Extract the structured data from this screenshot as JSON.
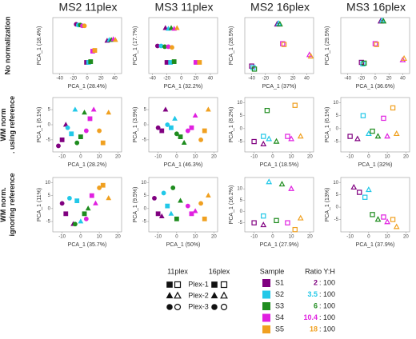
{
  "column_titles": [
    "MS2 11plex",
    "MS3 11plex",
    "MS2 16plex",
    "MS3 16plex"
  ],
  "row_labels": [
    [
      "No normalization"
    ],
    [
      "WM norm",
      ". using reference"
    ],
    [
      "WM norm.",
      "ignoring reference"
    ]
  ],
  "legend": {
    "plex_headers": [
      "11plex",
      "16plex"
    ],
    "plexes": [
      {
        "label": "Plex-1",
        "marker": "square"
      },
      {
        "label": "Plex-2",
        "marker": "triangle"
      },
      {
        "label": "Plex-3",
        "marker": "circle"
      }
    ],
    "sample_header": "Sample",
    "ratio_header": "Ratio Y:H",
    "ratio_suffix": ": 100",
    "samples": [
      {
        "name": "S1",
        "color": "#800080",
        "ratio": 2
      },
      {
        "name": "S2",
        "color": "#22c8e8",
        "ratio": 3.5
      },
      {
        "name": "S3",
        "color": "#1e8c1e",
        "ratio": 6
      },
      {
        "name": "S4",
        "color": "#e020e0",
        "ratio": 10.4
      },
      {
        "name": "S5",
        "color": "#f0a020",
        "ratio": 18
      }
    ]
  },
  "chart_data": [
    {
      "type": "scatter",
      "x_label": "PCA_1 (28.4%)",
      "y_label": "PCA_1 (18.4%)",
      "xlim": [
        -50,
        50
      ],
      "ylim": [
        -35,
        40
      ],
      "xticks": [
        -40,
        -20,
        0,
        20,
        40
      ],
      "filled": true,
      "markers": [
        "square",
        "triangle",
        "circle"
      ],
      "series": [
        {
          "color": "#800080",
          "x": [
            -1,
            29,
            -16
          ],
          "y": [
            -20,
            9,
            31
          ]
        },
        {
          "color": "#22c8e8",
          "x": [
            2,
            32,
            -13
          ],
          "y": [
            -20,
            10,
            30
          ]
        },
        {
          "color": "#1e8c1e",
          "x": [
            5,
            35,
            -10
          ],
          "y": [
            -19,
            10,
            30
          ]
        },
        {
          "color": "#e020e0",
          "x": [
            8,
            38,
            -7
          ],
          "y": [
            -5,
            11,
            29
          ]
        },
        {
          "color": "#f0a020",
          "x": [
            11,
            41,
            -4
          ],
          "y": [
            -4,
            10,
            29
          ]
        }
      ]
    },
    {
      "type": "scatter",
      "x_label": "PCA_1 (32.2%)",
      "y_label": "PCA_1 (17.7%)",
      "xlim": [
        -45,
        50
      ],
      "ylim": [
        -35,
        40
      ],
      "xticks": [
        -40,
        -20,
        0,
        20,
        40
      ],
      "filled": true,
      "markers": [
        "square",
        "triangle",
        "circle"
      ],
      "series": [
        {
          "color": "#800080",
          "x": [
            -20,
            -22,
            -33
          ],
          "y": [
            -20,
            26,
            2
          ]
        },
        {
          "color": "#22c8e8",
          "x": [
            -15,
            -18,
            -28
          ],
          "y": [
            -20,
            25,
            2
          ]
        },
        {
          "color": "#1e8c1e",
          "x": [
            -10,
            -14,
            -23
          ],
          "y": [
            -19,
            26,
            1
          ]
        },
        {
          "color": "#e020e0",
          "x": [
            20,
            -10,
            -18
          ],
          "y": [
            -20,
            25,
            1
          ]
        },
        {
          "color": "#f0a020",
          "x": [
            25,
            -6,
            -13
          ],
          "y": [
            -20,
            26,
            0
          ]
        }
      ]
    },
    {
      "type": "scatter",
      "x_label": "PCA_1 (37%)",
      "y_label": "PCA_1 (28.5%)",
      "xlim": [
        -50,
        50
      ],
      "ylim": [
        -30,
        45
      ],
      "xticks": [
        -40,
        -20,
        0,
        20,
        40
      ],
      "filled": false,
      "markers": [
        "square",
        "triangle"
      ],
      "series": [
        {
          "color": "#800080",
          "x": [
            -40,
            -3
          ],
          "y": [
            -20,
            36
          ]
        },
        {
          "color": "#22c8e8",
          "x": [
            -38,
            -1
          ],
          "y": [
            -22,
            37
          ]
        },
        {
          "color": "#1e8c1e",
          "x": [
            -36,
            1
          ],
          "y": [
            -24,
            36
          ]
        },
        {
          "color": "#e020e0",
          "x": [
            5,
            44
          ],
          "y": [
            10,
            -5
          ]
        },
        {
          "color": "#f0a020",
          "x": [
            7,
            46
          ],
          "y": [
            9,
            -7
          ]
        }
      ]
    },
    {
      "type": "scatter",
      "x_label": "PCA_1 (36.6%)",
      "y_label": "PCA_1 (29.5%)",
      "xlim": [
        -50,
        50
      ],
      "ylim": [
        -30,
        45
      ],
      "xticks": [
        -40,
        -20,
        0,
        20,
        40
      ],
      "filled": false,
      "markers": [
        "square",
        "triangle"
      ],
      "series": [
        {
          "color": "#800080",
          "x": [
            -20,
            8
          ],
          "y": [
            -15,
            40
          ]
        },
        {
          "color": "#22c8e8",
          "x": [
            -18,
            10
          ],
          "y": [
            -17,
            41
          ]
        },
        {
          "color": "#1e8c1e",
          "x": [
            -16,
            12
          ],
          "y": [
            -16,
            40
          ]
        },
        {
          "color": "#e020e0",
          "x": [
            0,
            40
          ],
          "y": [
            10,
            -12
          ]
        },
        {
          "color": "#f0a020",
          "x": [
            2,
            42
          ],
          "y": [
            9,
            -10
          ]
        }
      ]
    },
    {
      "type": "scatter",
      "x_label": "PCA_1 (28.2%)",
      "y_label": "PCA_1 (6.1%)",
      "xlim": [
        -15,
        22
      ],
      "ylim": [
        -9,
        9
      ],
      "xticks": [
        -10,
        0,
        10,
        20
      ],
      "yticks": [
        -5,
        0,
        5
      ],
      "filled": true,
      "markers": [
        "square",
        "triangle",
        "circle"
      ],
      "series": [
        {
          "color": "#800080",
          "x": [
            -10,
            -8,
            -12
          ],
          "y": [
            -5,
            0,
            -7
          ]
        },
        {
          "color": "#22c8e8",
          "x": [
            -5,
            -3,
            -7
          ],
          "y": [
            -3,
            5,
            -1
          ]
        },
        {
          "color": "#1e8c1e",
          "x": [
            0,
            2,
            -2
          ],
          "y": [
            -4,
            4,
            -6
          ]
        },
        {
          "color": "#e020e0",
          "x": [
            5,
            7,
            3
          ],
          "y": [
            2,
            5,
            -2
          ]
        },
        {
          "color": "#f0a020",
          "x": [
            12,
            15,
            10
          ],
          "y": [
            -6,
            4,
            -2
          ]
        }
      ]
    },
    {
      "type": "scatter",
      "x_label": "PCA_1 (46.3%)",
      "y_label": "PCA_1 (3.9%)",
      "xlim": [
        -15,
        22
      ],
      "ylim": [
        -9,
        9
      ],
      "xticks": [
        -10,
        0,
        10,
        20
      ],
      "yticks": [
        -5,
        0,
        5
      ],
      "filled": true,
      "markers": [
        "square",
        "triangle",
        "circle"
      ],
      "series": [
        {
          "color": "#800080",
          "x": [
            -8,
            -6,
            -10
          ],
          "y": [
            -2,
            5,
            -1
          ]
        },
        {
          "color": "#22c8e8",
          "x": [
            -3,
            -1,
            -5
          ],
          "y": [
            -1,
            2,
            0
          ]
        },
        {
          "color": "#1e8c1e",
          "x": [
            2,
            4,
            0
          ],
          "y": [
            -4,
            -6,
            -3
          ]
        },
        {
          "color": "#e020e0",
          "x": [
            8,
            10,
            6
          ],
          "y": [
            -1,
            3,
            -2
          ]
        },
        {
          "color": "#f0a020",
          "x": [
            15,
            17,
            13
          ],
          "y": [
            -2,
            5,
            -5
          ]
        }
      ]
    },
    {
      "type": "scatter",
      "x_label": "PCA_1 (18.5%)",
      "y_label": "PCA_1 (8.2%)",
      "xlim": [
        -15,
        22
      ],
      "ylim": [
        -9,
        12
      ],
      "xticks": [
        -10,
        0,
        10,
        20
      ],
      "yticks": [
        -5,
        0,
        5,
        10
      ],
      "filled": false,
      "markers": [
        "square",
        "triangle"
      ],
      "series": [
        {
          "color": "#800080",
          "x": [
            -10,
            -5
          ],
          "y": [
            -5,
            -6
          ]
        },
        {
          "color": "#22c8e8",
          "x": [
            -5,
            -2
          ],
          "y": [
            -3,
            -4
          ]
        },
        {
          "color": "#1e8c1e",
          "x": [
            -3,
            2
          ],
          "y": [
            7,
            -5
          ]
        },
        {
          "color": "#e020e0",
          "x": [
            8,
            10
          ],
          "y": [
            -3,
            -4
          ]
        },
        {
          "color": "#f0a020",
          "x": [
            12,
            15
          ],
          "y": [
            9,
            -3
          ]
        }
      ]
    },
    {
      "type": "scatter",
      "x_label": "PCA_1 (32%)",
      "y_label": "PCA_1 (6.1%)",
      "xlim": [
        -15,
        22
      ],
      "ylim": [
        -9,
        12
      ],
      "xticks": [
        -10,
        0,
        10,
        20
      ],
      "yticks": [
        -5,
        0,
        5,
        10
      ],
      "filled": false,
      "markers": [
        "square",
        "triangle"
      ],
      "series": [
        {
          "color": "#800080",
          "x": [
            -10,
            -6
          ],
          "y": [
            -3,
            -4
          ]
        },
        {
          "color": "#22c8e8",
          "x": [
            -3,
            0
          ],
          "y": [
            5,
            -2
          ]
        },
        {
          "color": "#1e8c1e",
          "x": [
            2,
            5
          ],
          "y": [
            -1,
            -3
          ]
        },
        {
          "color": "#e020e0",
          "x": [
            8,
            10
          ],
          "y": [
            4,
            -3
          ]
        },
        {
          "color": "#f0a020",
          "x": [
            13,
            15
          ],
          "y": [
            8,
            -2
          ]
        }
      ]
    },
    {
      "type": "scatter",
      "x_label": "PCA_1 (35.7%)",
      "y_label": "PCA_1 (11%)",
      "xlim": [
        -15,
        22
      ],
      "ylim": [
        -9,
        12
      ],
      "xticks": [
        -10,
        0,
        10,
        20
      ],
      "yticks": [
        -5,
        0,
        5,
        10
      ],
      "filled": true,
      "markers": [
        "square",
        "triangle",
        "circle"
      ],
      "series": [
        {
          "color": "#800080",
          "x": [
            -8,
            -4,
            -10
          ],
          "y": [
            -2,
            -6,
            2
          ]
        },
        {
          "color": "#22c8e8",
          "x": [
            -2,
            0,
            -6
          ],
          "y": [
            3,
            -5,
            4
          ]
        },
        {
          "color": "#1e8c1e",
          "x": [
            2,
            4,
            -3
          ],
          "y": [
            -2,
            0,
            -6
          ]
        },
        {
          "color": "#e020e0",
          "x": [
            6,
            8,
            3
          ],
          "y": [
            5,
            2,
            -4
          ]
        },
        {
          "color": "#f0a020",
          "x": [
            12,
            15,
            10
          ],
          "y": [
            9,
            4,
            8
          ]
        }
      ]
    },
    {
      "type": "scatter",
      "x_label": "PCA_1 (50%)",
      "y_label": "PCA_1 (9.5%)",
      "xlim": [
        -15,
        22
      ],
      "ylim": [
        -9,
        12
      ],
      "xticks": [
        -10,
        0,
        10,
        20
      ],
      "yticks": [
        -5,
        0,
        5,
        10
      ],
      "filled": true,
      "markers": [
        "square",
        "triangle",
        "circle"
      ],
      "series": [
        {
          "color": "#800080",
          "x": [
            -10,
            -8,
            -12
          ],
          "y": [
            -2,
            -3,
            4
          ]
        },
        {
          "color": "#22c8e8",
          "x": [
            -5,
            -3,
            -7
          ],
          "y": [
            1,
            -2,
            6
          ]
        },
        {
          "color": "#1e8c1e",
          "x": [
            0,
            2,
            -2
          ],
          "y": [
            -4,
            3,
            8
          ]
        },
        {
          "color": "#e020e0",
          "x": [
            8,
            10,
            6
          ],
          "y": [
            -2,
            -1,
            1
          ]
        },
        {
          "color": "#f0a020",
          "x": [
            15,
            17,
            13
          ],
          "y": [
            -4,
            5,
            2
          ]
        }
      ]
    },
    {
      "type": "scatter",
      "x_label": "PCA_1 (27.9%)",
      "y_label": "PCA_1 (16.2%)",
      "xlim": [
        -15,
        22
      ],
      "ylim": [
        -9,
        15
      ],
      "xticks": [
        -10,
        0,
        10,
        20
      ],
      "yticks": [
        -5,
        0,
        5,
        10
      ],
      "filled": false,
      "markers": [
        "square",
        "triangle"
      ],
      "series": [
        {
          "color": "#800080",
          "x": [
            -10,
            -5
          ],
          "y": [
            -5,
            -6
          ]
        },
        {
          "color": "#22c8e8",
          "x": [
            -5,
            -2
          ],
          "y": [
            -2,
            13
          ]
        },
        {
          "color": "#1e8c1e",
          "x": [
            2,
            5
          ],
          "y": [
            -4,
            12
          ]
        },
        {
          "color": "#e020e0",
          "x": [
            8,
            10
          ],
          "y": [
            -5,
            10
          ]
        },
        {
          "color": "#f0a020",
          "x": [
            12,
            15
          ],
          "y": [
            -8,
            -3
          ]
        }
      ]
    },
    {
      "type": "scatter",
      "x_label": "PCA_1 (37.9%)",
      "y_label": "PCA_1 (13%)",
      "xlim": [
        -15,
        22
      ],
      "ylim": [
        -10,
        12
      ],
      "xticks": [
        -10,
        0,
        10,
        20
      ],
      "yticks": [
        -5,
        0,
        5,
        10
      ],
      "filled": false,
      "markers": [
        "square",
        "triangle"
      ],
      "series": [
        {
          "color": "#800080",
          "x": [
            -5,
            -8
          ],
          "y": [
            6,
            8
          ]
        },
        {
          "color": "#22c8e8",
          "x": [
            -2,
            0
          ],
          "y": [
            4,
            7
          ]
        },
        {
          "color": "#1e8c1e",
          "x": [
            2,
            5
          ],
          "y": [
            -3,
            -5
          ]
        },
        {
          "color": "#e020e0",
          "x": [
            8,
            10
          ],
          "y": [
            -4,
            -6
          ]
        },
        {
          "color": "#f0a020",
          "x": [
            13,
            15
          ],
          "y": [
            -5,
            -8
          ]
        }
      ]
    }
  ]
}
